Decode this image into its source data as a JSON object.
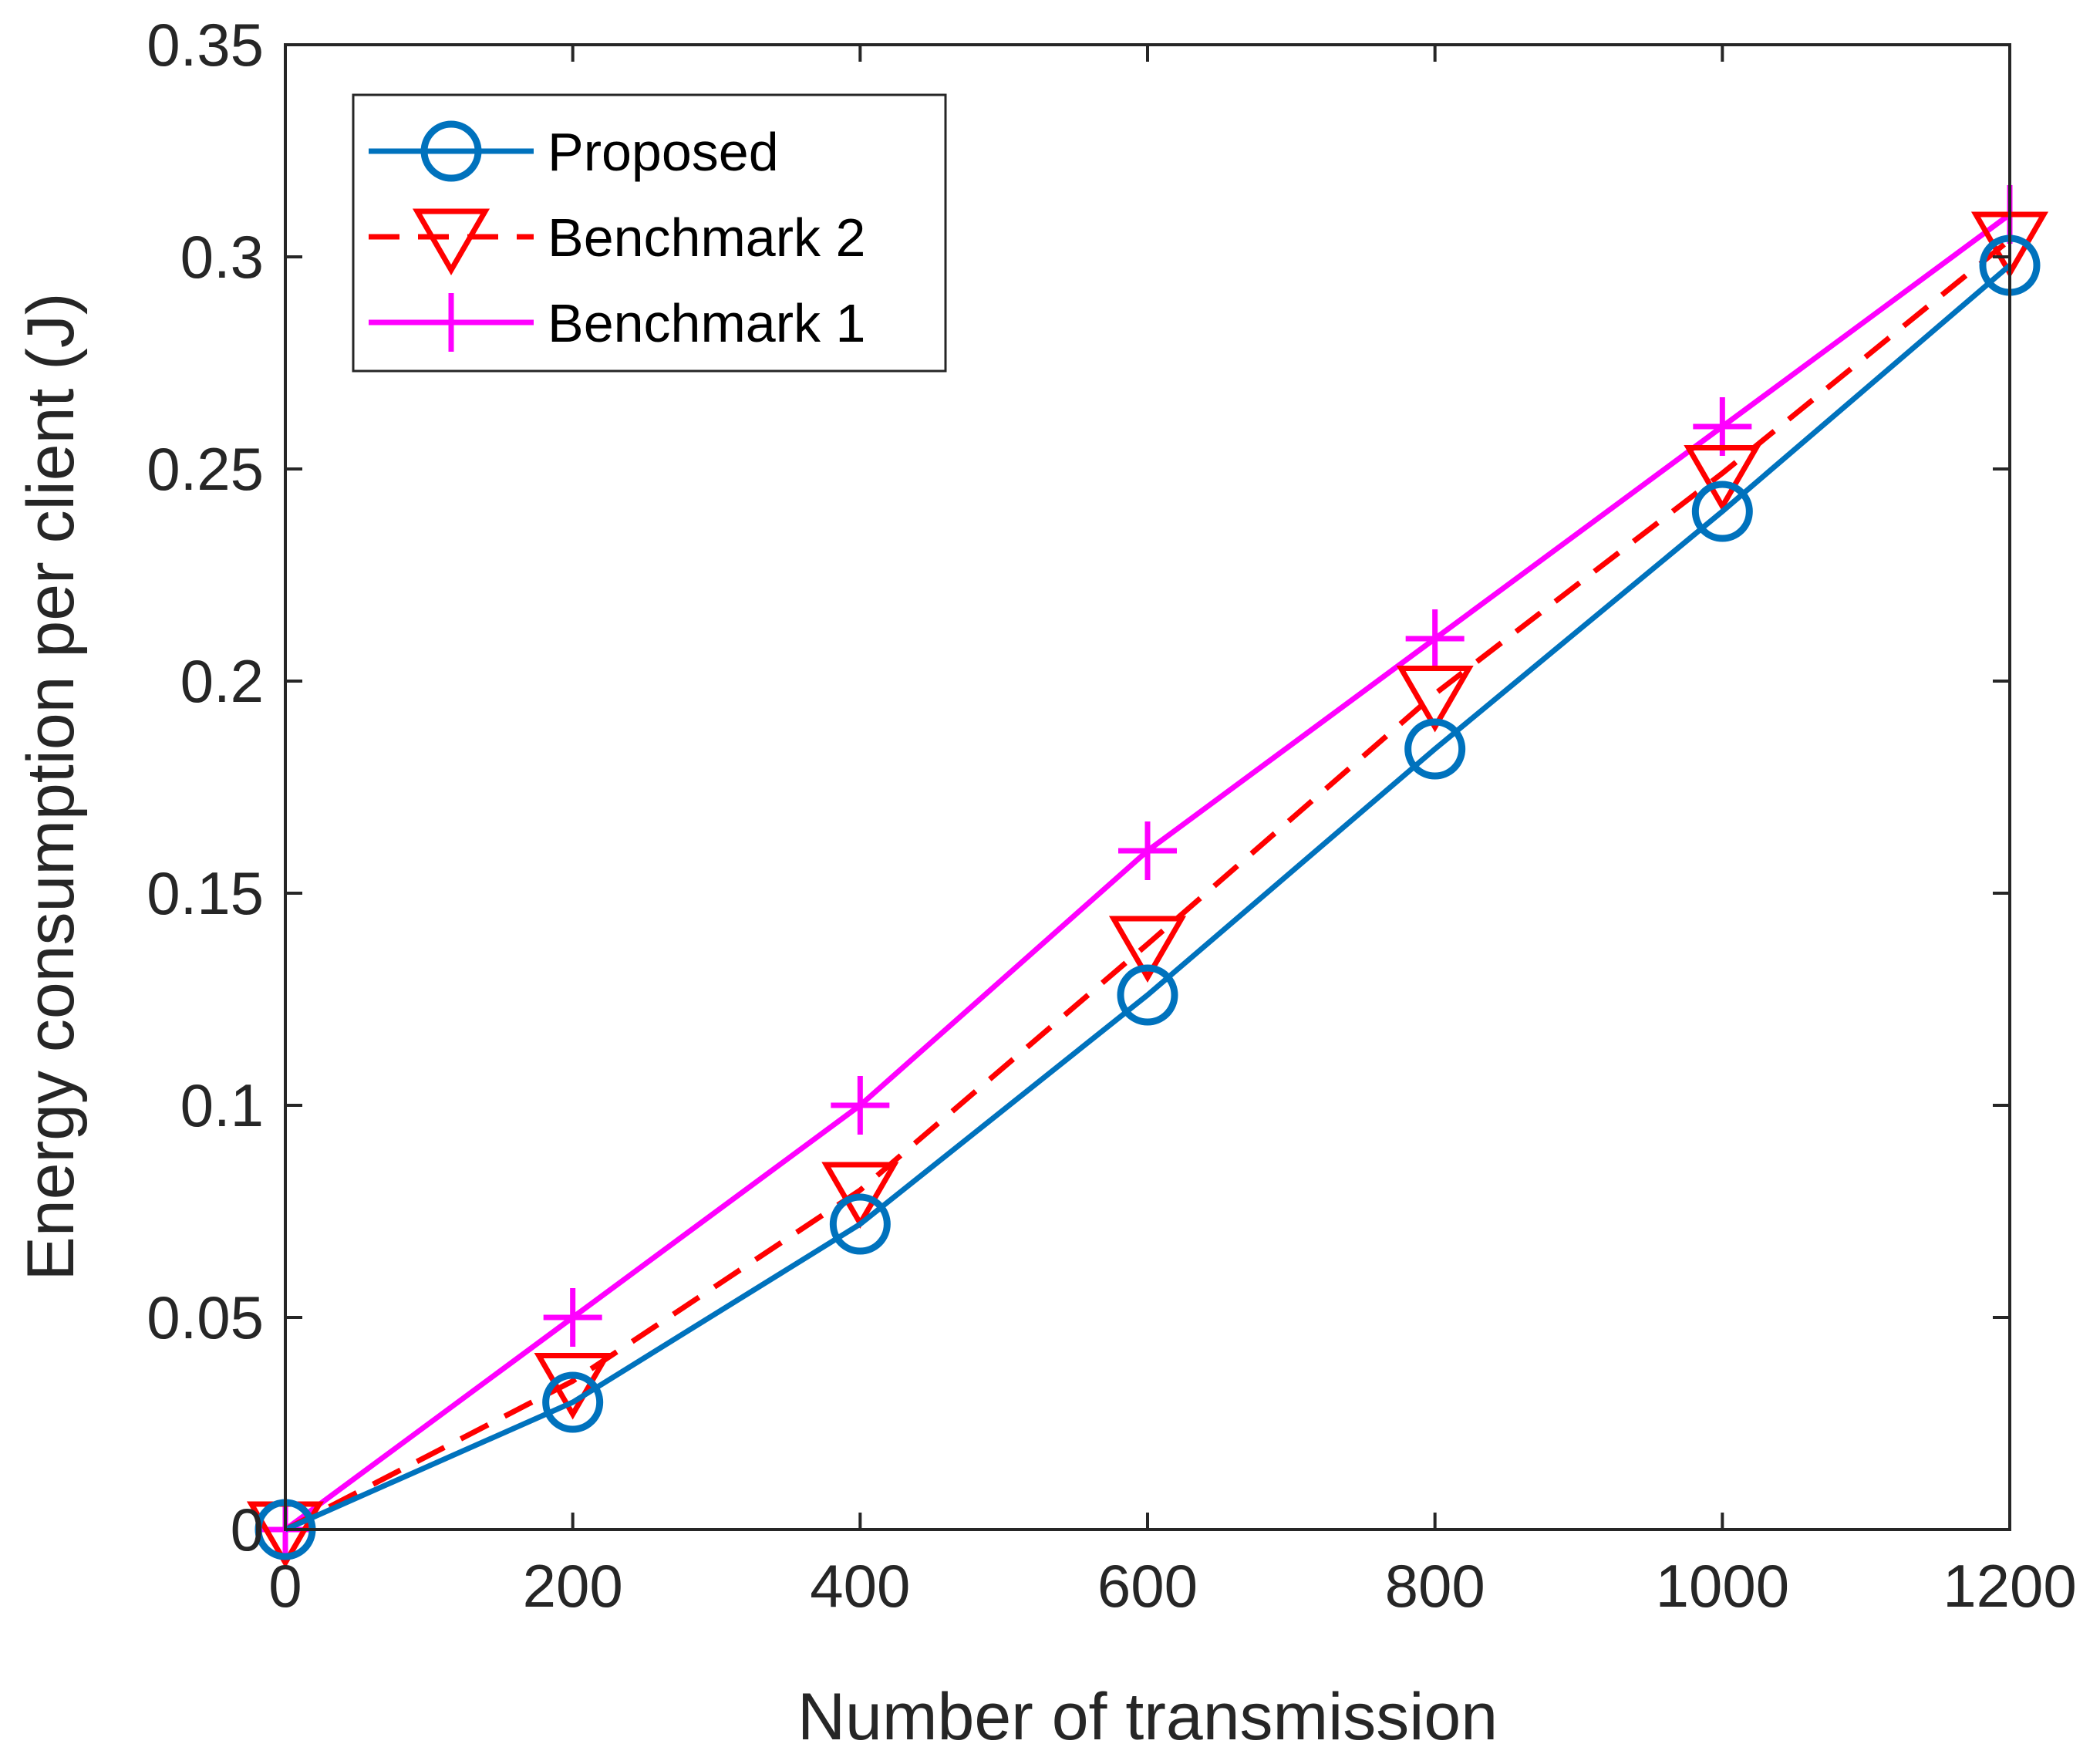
{
  "chart_data": {
    "type": "line",
    "title": "",
    "xlabel": "Number of transmission",
    "ylabel": "Energy consumption per client (J)",
    "xlim": [
      0,
      1200
    ],
    "ylim": [
      0,
      0.35
    ],
    "x_ticks": [
      0,
      200,
      400,
      600,
      800,
      1000,
      1200
    ],
    "x_tick_labels": [
      "0",
      "200",
      "400",
      "600",
      "800",
      "1000",
      "1200"
    ],
    "y_ticks": [
      0,
      0.05,
      0.1,
      0.15,
      0.2,
      0.25,
      0.3,
      0.35
    ],
    "y_tick_labels": [
      "0",
      "0.05",
      "0.1",
      "0.15",
      "0.2",
      "0.25",
      "0.3",
      "0.35"
    ],
    "grid": false,
    "legend_position": "top-left",
    "x": [
      0,
      200,
      400,
      600,
      800,
      1000,
      1200
    ],
    "series": [
      {
        "name": "Proposed",
        "values": [
          0,
          0.03,
          0.072,
          0.126,
          0.184,
          0.24,
          0.298
        ],
        "color": "#0072BD",
        "marker": "circle",
        "line_style": "solid"
      },
      {
        "name": "Benchmark 2",
        "values": [
          0,
          0.035,
          0.08,
          0.138,
          0.197,
          0.249,
          0.304
        ],
        "color": "#FF0000",
        "marker": "triangle-down",
        "line_style": "dashed"
      },
      {
        "name": "Benchmark 1",
        "values": [
          0,
          0.05,
          0.1,
          0.16,
          0.21,
          0.26,
          0.31
        ],
        "color": "#FF00FF",
        "marker": "plus",
        "line_style": "solid"
      }
    ]
  }
}
